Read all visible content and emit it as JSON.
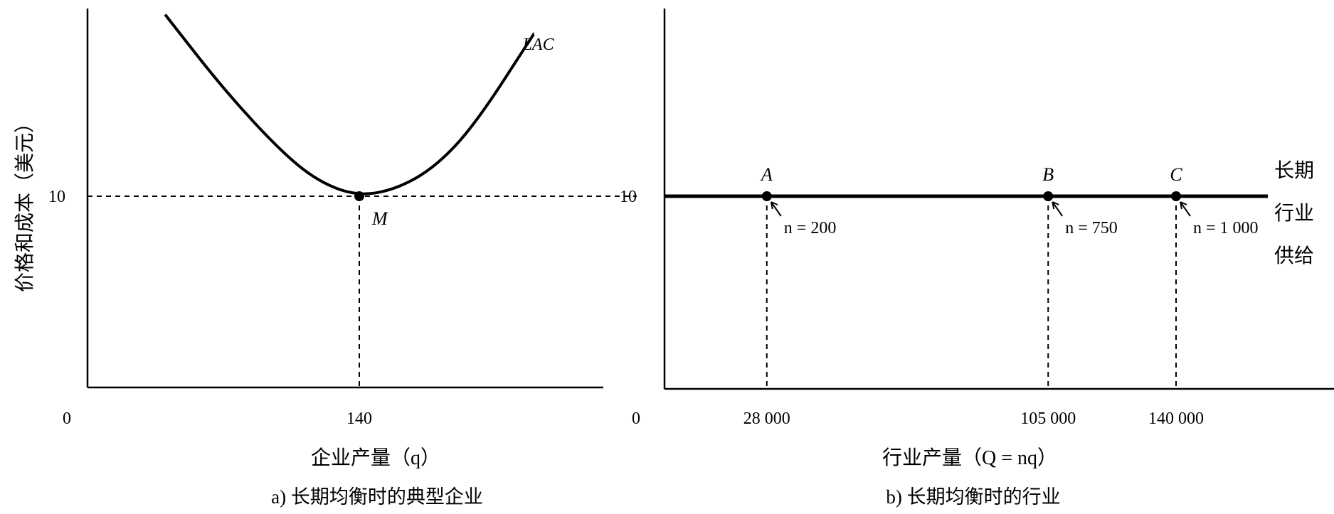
{
  "chart_data": [
    {
      "panel": "a",
      "type": "line",
      "caption": "a) 长期均衡时的典型企业",
      "xlabel": "企业产量（q）",
      "ylabel": "价格和成本（美元）",
      "x_ticks": [
        "0",
        "140"
      ],
      "y_ticks": [
        "10"
      ],
      "series": [
        {
          "name": "LAC",
          "x": [
            40,
            70,
            100,
            120,
            140,
            160,
            180,
            200,
            230
          ],
          "y": [
            19.5,
            15.6,
            12.3,
            10.7,
            10,
            10.4,
            11.6,
            13.8,
            18.5
          ]
        }
      ],
      "points": [
        {
          "label": "M",
          "x": 140,
          "y": 10
        }
      ]
    },
    {
      "panel": "b",
      "type": "line",
      "caption": "b) 长期均衡时的行业",
      "xlabel": "行业产量（Q = nq）",
      "y_ticks": [
        "10"
      ],
      "x_ticks": [
        "0",
        "28 000",
        "105 000",
        "140 000"
      ],
      "series": [
        {
          "name": "长期 行业 供给",
          "x": [
            0,
            180000
          ],
          "y": [
            10,
            10
          ]
        }
      ],
      "points": [
        {
          "label": "A",
          "x": 28000,
          "y": 10,
          "note": "n = 200"
        },
        {
          "label": "B",
          "x": 105000,
          "y": 10,
          "note": "n = 750"
        },
        {
          "label": "C",
          "x": 140000,
          "y": 10,
          "note": "n = 1 000"
        }
      ]
    }
  ]
}
